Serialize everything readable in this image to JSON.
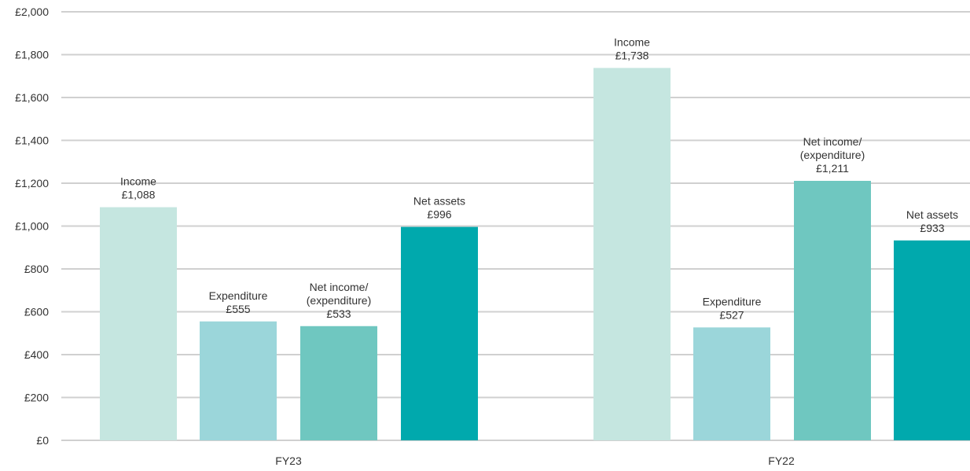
{
  "chart_data": {
    "type": "bar",
    "categories": [
      "FY23",
      "FY22"
    ],
    "currency_symbol": "£",
    "y_ticks": [
      "£0",
      "£200",
      "£400",
      "£600",
      "£800",
      "£1,000",
      "£1,200",
      "£1,400",
      "£1,600",
      "£1,800",
      "£2,000"
    ],
    "ylim": [
      0,
      2000
    ],
    "grid": true,
    "series": [
      {
        "label_lines": [
          "Income"
        ],
        "color": "#c5e6e0",
        "values": [
          1088,
          1738
        ],
        "value_labels": [
          "£1,088",
          "£1,738"
        ]
      },
      {
        "label_lines": [
          "Expenditure"
        ],
        "color": "#9bd6da",
        "values": [
          555,
          527
        ],
        "value_labels": [
          "£555",
          "£527"
        ]
      },
      {
        "label_lines": [
          "Net income/",
          "(expenditure)"
        ],
        "color": "#6fc7c0",
        "values": [
          533,
          1211
        ],
        "value_labels": [
          "£533",
          "£1,211"
        ]
      },
      {
        "label_lines": [
          "Net assets"
        ],
        "color": "#00a9ad",
        "values": [
          996,
          933
        ],
        "value_labels": [
          "£996",
          "£933"
        ]
      }
    ]
  }
}
